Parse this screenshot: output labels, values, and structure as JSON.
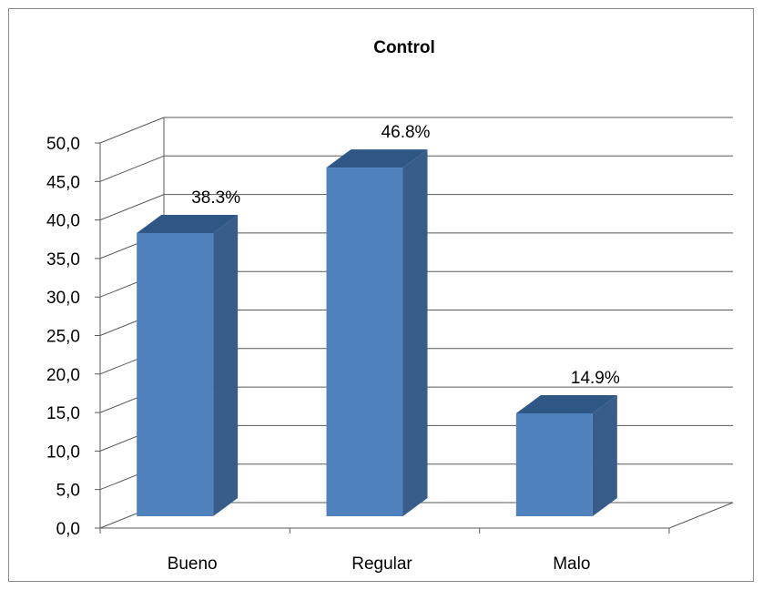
{
  "chart_data": {
    "type": "bar",
    "title": "Control",
    "categories": [
      "Bueno",
      "Regular",
      "Malo"
    ],
    "values": [
      38.3,
      46.8,
      14.9
    ],
    "data_labels": [
      "38.3%",
      "46.8%",
      "14.9%"
    ],
    "y_tick_labels": [
      "0,0",
      "5,0",
      "10,0",
      "15,0",
      "20,0",
      "25,0",
      "30,0",
      "35,0",
      "40,0",
      "45,0",
      "50,0"
    ],
    "ylim": [
      0,
      50
    ],
    "ytick_step": 5,
    "xlabel": "",
    "ylabel": "",
    "grid": true,
    "legend": "none",
    "style": "3d-column",
    "colors": {
      "bar_front": "#4f81bd",
      "bar_side": "#385d8a",
      "bar_top": "#2f5785",
      "grid": "#595959",
      "frame": "#8c8c8c"
    }
  }
}
